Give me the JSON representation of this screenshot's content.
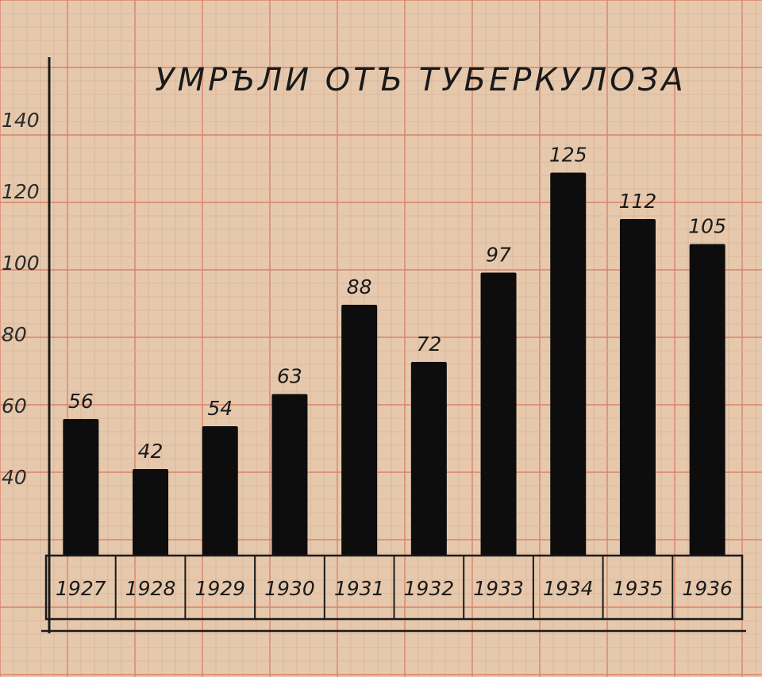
{
  "chart_data": {
    "type": "bar",
    "title": "УМРѢЛИ ОТЪ ТУБЕРКУЛОЗА",
    "categories": [
      "1927",
      "1928",
      "1929",
      "1930",
      "1931",
      "1932",
      "1933",
      "1934",
      "1935",
      "1936"
    ],
    "values": [
      56,
      42,
      54,
      63,
      88,
      72,
      97,
      125,
      112,
      105
    ],
    "yticks": [
      "40",
      "60",
      "80",
      "100",
      "120",
      "140"
    ],
    "ylim": [
      22,
      148
    ],
    "grid": true,
    "colors": {
      "paper": "#e6c9ad",
      "grid_minor": "#d8b398",
      "grid_major": "#d9826a",
      "bar": "#0d0d0d",
      "ink": "#1a1a1a"
    }
  }
}
